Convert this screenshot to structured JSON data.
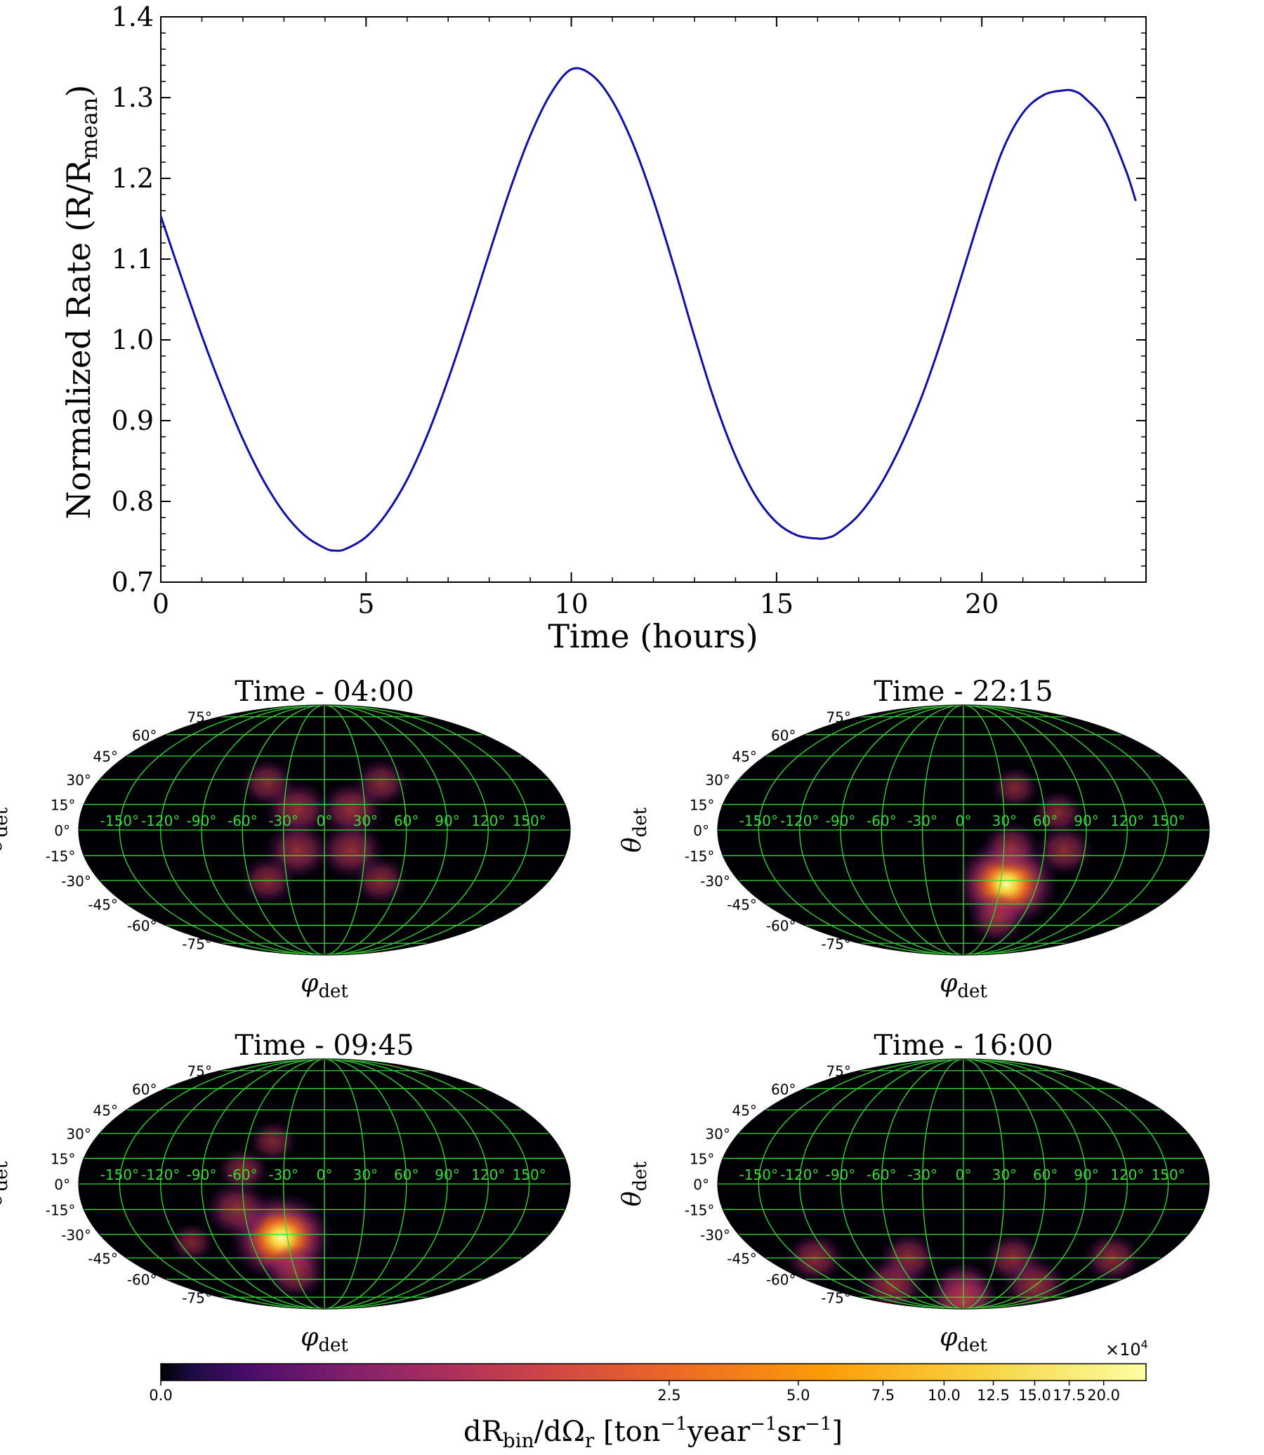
{
  "chart_data": [
    {
      "type": "line",
      "title": "",
      "xlabel": "Time (hours)",
      "ylabel": "Normalized Rate (R/R",
      "ylabel_sub": "mean",
      "ylabel_close": ")",
      "xlim": [
        0,
        24
      ],
      "ylim": [
        0.7,
        1.4
      ],
      "xticks": [
        "0",
        "5",
        "10",
        "15",
        "20"
      ],
      "xtick_values": [
        0,
        5,
        10,
        15,
        20
      ],
      "yticks": [
        "0.7",
        "0.8",
        "0.9",
        "1.0",
        "1.1",
        "1.2",
        "1.3",
        "1.4"
      ],
      "ytick_values": [
        0.7,
        0.8,
        0.9,
        1.0,
        1.1,
        1.2,
        1.3,
        1.4
      ],
      "series": [
        {
          "name": "Normalized rate",
          "color": "#1010a8",
          "x": [
            0,
            0.5,
            1,
            1.5,
            2,
            2.5,
            3,
            3.5,
            4,
            4.25,
            4.5,
            5,
            5.5,
            6,
            6.5,
            7,
            7.5,
            8,
            8.5,
            9,
            9.5,
            10,
            10.5,
            11,
            11.5,
            12,
            12.5,
            13,
            13.5,
            14,
            14.5,
            15,
            15.5,
            16,
            16.25,
            16.5,
            17,
            17.5,
            18,
            18.5,
            19,
            19.5,
            20,
            20.5,
            21,
            21.5,
            22,
            22.25,
            22.5,
            23,
            23.5,
            23.75
          ],
          "y": [
            1.153,
            1.078,
            1.005,
            0.938,
            0.877,
            0.826,
            0.786,
            0.758,
            0.742,
            0.739,
            0.741,
            0.756,
            0.785,
            0.827,
            0.883,
            0.951,
            1.027,
            1.107,
            1.185,
            1.253,
            1.305,
            1.335,
            1.328,
            1.296,
            1.243,
            1.173,
            1.091,
            1.004,
            0.923,
            0.856,
            0.806,
            0.774,
            0.758,
            0.754,
            0.755,
            0.761,
            0.783,
            0.818,
            0.866,
            0.925,
            0.997,
            1.078,
            1.16,
            1.234,
            1.281,
            1.303,
            1.309,
            1.308,
            1.3,
            1.271,
            1.211,
            1.172
          ]
        }
      ]
    },
    {
      "type": "heatmap",
      "projection": "mollweide",
      "title": "Time - 04:00",
      "xlabel": "φ",
      "xlabel_sub": "det",
      "ylabel": "θ",
      "ylabel_sub": "det",
      "lon_labels": [
        "-150°",
        "-120°",
        "-90°",
        "-60°",
        "-30°",
        "0°",
        "30°",
        "60°",
        "90°",
        "120°",
        "150°"
      ],
      "lat_labels": [
        "75°",
        "60°",
        "45°",
        "30°",
        "15°",
        "0°",
        "-15°",
        "-30°",
        "-45°",
        "-60°",
        "-75°"
      ],
      "hotspots": [
        {
          "lon": -20,
          "lat": 12,
          "w": 0.45
        },
        {
          "lon": 20,
          "lat": 12,
          "w": 0.45
        },
        {
          "lon": -20,
          "lat": -12,
          "w": 0.45
        },
        {
          "lon": 20,
          "lat": -12,
          "w": 0.45
        },
        {
          "lon": -45,
          "lat": 28,
          "w": 0.3
        },
        {
          "lon": 45,
          "lat": 28,
          "w": 0.3
        },
        {
          "lon": -45,
          "lat": -30,
          "w": 0.3
        },
        {
          "lon": 45,
          "lat": -30,
          "w": 0.3
        }
      ]
    },
    {
      "type": "heatmap",
      "projection": "mollweide",
      "title": "Time - 22:15",
      "xlabel": "φ",
      "xlabel_sub": "det",
      "ylabel": "θ",
      "ylabel_sub": "det",
      "lon_labels": [
        "-150°",
        "-120°",
        "-90°",
        "-60°",
        "-30°",
        "0°",
        "30°",
        "60°",
        "90°",
        "120°",
        "150°"
      ],
      "lat_labels": [
        "75°",
        "60°",
        "45°",
        "30°",
        "15°",
        "0°",
        "-15°",
        "-30°",
        "-45°",
        "-60°",
        "-75°"
      ],
      "hotspots": [
        {
          "lon": 35,
          "lat": -32,
          "w": 1.0
        },
        {
          "lon": 35,
          "lat": -10,
          "w": 0.35
        },
        {
          "lon": 75,
          "lat": -12,
          "w": 0.35
        },
        {
          "lon": 35,
          "lat": -55,
          "w": 0.35
        },
        {
          "lon": 70,
          "lat": 10,
          "w": 0.25
        },
        {
          "lon": 40,
          "lat": 25,
          "w": 0.2
        }
      ]
    },
    {
      "type": "heatmap",
      "projection": "mollweide",
      "title": "Time - 09:45",
      "xlabel": "φ",
      "xlabel_sub": "det",
      "ylabel": "θ",
      "ylabel_sub": "det",
      "lon_labels": [
        "-150°",
        "-120°",
        "-90°",
        "-60°",
        "-30°",
        "0°",
        "30°",
        "60°",
        "90°",
        "120°",
        "150°"
      ],
      "lat_labels": [
        "75°",
        "60°",
        "45°",
        "30°",
        "15°",
        "0°",
        "-15°",
        "-30°",
        "-45°",
        "-60°",
        "-75°"
      ],
      "hotspots": [
        {
          "lon": -35,
          "lat": -32,
          "w": 1.0
        },
        {
          "lon": -65,
          "lat": -15,
          "w": 0.45
        },
        {
          "lon": -30,
          "lat": -55,
          "w": 0.4
        },
        {
          "lon": -60,
          "lat": 8,
          "w": 0.25
        },
        {
          "lon": -40,
          "lat": 25,
          "w": 0.2
        },
        {
          "lon": -110,
          "lat": -35,
          "w": 0.15
        }
      ]
    },
    {
      "type": "heatmap",
      "projection": "mollweide",
      "title": "Time - 16:00",
      "xlabel": "φ",
      "xlabel_sub": "det",
      "ylabel": "θ",
      "ylabel_sub": "det",
      "lon_labels": [
        "-150°",
        "-120°",
        "-90°",
        "-60°",
        "-30°",
        "0°",
        "30°",
        "60°",
        "90°",
        "120°",
        "150°"
      ],
      "lat_labels": [
        "75°",
        "60°",
        "45°",
        "30°",
        "15°",
        "0°",
        "-15°",
        "-30°",
        "-45°",
        "-60°",
        "-75°"
      ],
      "hotspots": [
        {
          "lon": -135,
          "lat": -45,
          "w": 0.35
        },
        {
          "lon": -50,
          "lat": -45,
          "w": 0.35
        },
        {
          "lon": 45,
          "lat": -45,
          "w": 0.35
        },
        {
          "lon": 135,
          "lat": -45,
          "w": 0.35
        },
        {
          "lon": -90,
          "lat": -65,
          "w": 0.45
        },
        {
          "lon": 0,
          "lat": -68,
          "w": 0.45
        },
        {
          "lon": 90,
          "lat": -65,
          "w": 0.45
        },
        {
          "lon": 0,
          "lat": -80,
          "w": 0.55
        }
      ]
    },
    {
      "type": "colorbar",
      "label": "dR",
      "label_sub1": "bin",
      "label_mid": "/dΩ",
      "label_sub2": "r",
      "label_units_open": " [ton",
      "label_sup1": "−1",
      "label_units_mid": "year",
      "label_sup2": "−1",
      "label_units_end": "sr",
      "label_sup3": "−1",
      "label_close": "]",
      "multiplier": "×10",
      "multiplier_exp": "4",
      "ticks": [
        "0.0",
        "2.5",
        "5.0",
        "7.5",
        "10.0",
        "12.5",
        "15.0",
        "17.5",
        "20.0"
      ],
      "tick_positions": [
        0.0,
        0.516,
        0.647,
        0.733,
        0.795,
        0.845,
        0.887,
        0.922,
        0.957
      ],
      "colormap": "inferno",
      "colors": [
        "#000004",
        "#1b0c41",
        "#4a0c6b",
        "#781c6d",
        "#a52c60",
        "#cf4446",
        "#ed6925",
        "#fb9b06",
        "#f7d13d",
        "#fcffa4"
      ]
    }
  ],
  "colors": {
    "grid_green": "#33dd33",
    "map_background": "#000004"
  }
}
